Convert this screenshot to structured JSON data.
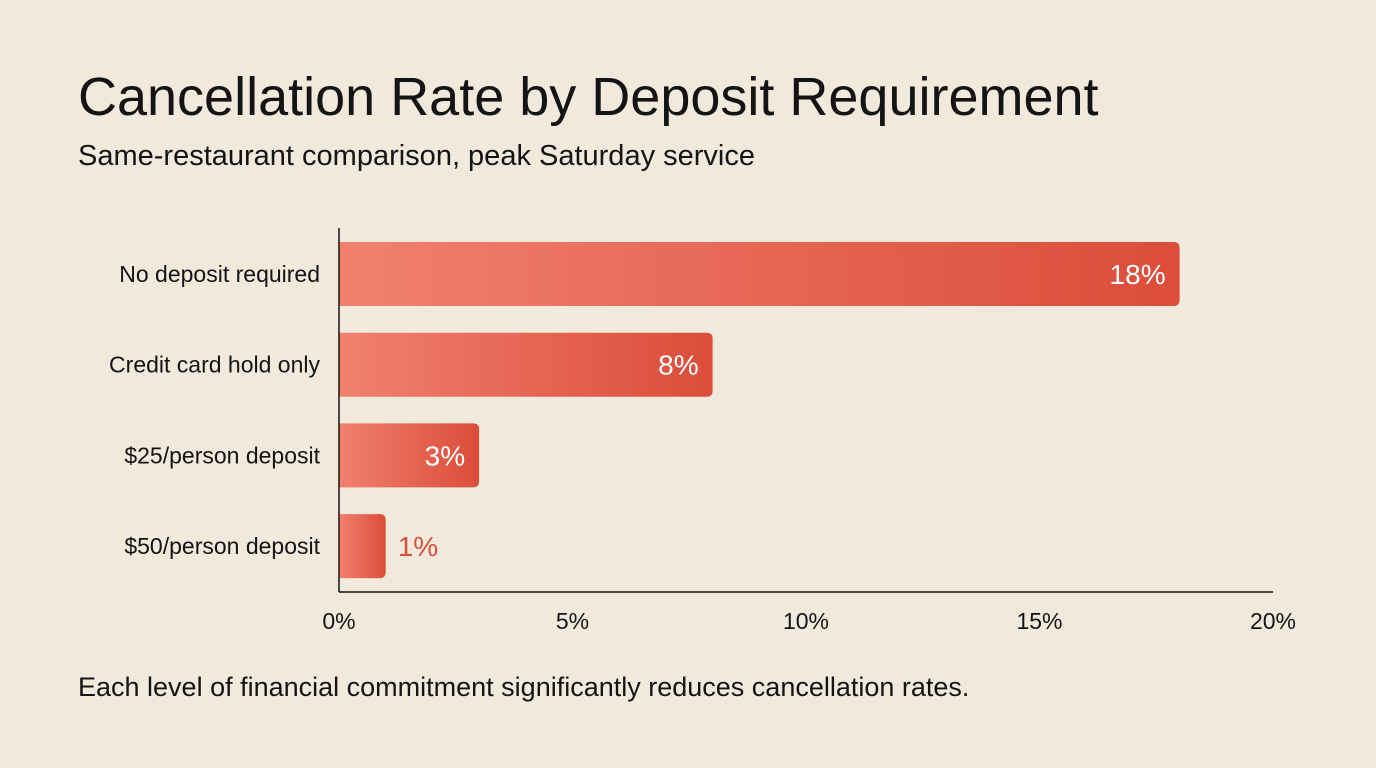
{
  "chart_data": {
    "type": "bar",
    "orientation": "horizontal",
    "title": "Cancellation Rate by Deposit Requirement",
    "subtitle": "Same-restaurant comparison, peak Saturday service",
    "categories": [
      "No deposit required",
      "Credit card hold only",
      "$25/person deposit",
      "$50/person deposit"
    ],
    "values": [
      18,
      8,
      3,
      1
    ],
    "data_labels": [
      "18%",
      "8%",
      "3%",
      "1%"
    ],
    "xlim": [
      0,
      20
    ],
    "x_ticks": [
      0,
      5,
      10,
      15,
      20
    ],
    "x_tick_labels": [
      "0%",
      "5%",
      "10%",
      "15%",
      "20%"
    ],
    "xlabel": "",
    "ylabel": "",
    "grid": false,
    "footnote": "Each level of financial commitment significantly reduces cancellation rates.",
    "colors": {
      "bar_start": "#f2806f",
      "bar_end": "#db4d3a",
      "label_outside": "#d4513f",
      "background": "#f1e9db"
    }
  }
}
